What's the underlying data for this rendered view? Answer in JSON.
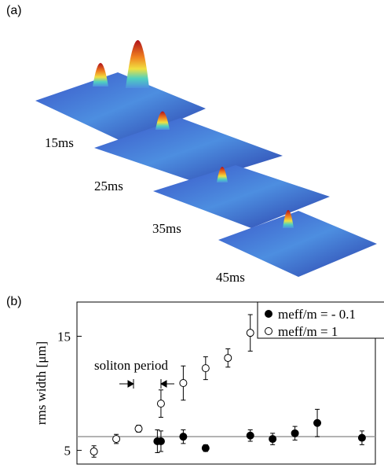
{
  "panel_a": {
    "label": "(a)",
    "times": [
      "15ms",
      "25ms",
      "35ms",
      "45ms"
    ]
  },
  "chart_data": {
    "type": "scatter",
    "panel_label": "(b)",
    "ylabel": "rms width [μm]",
    "annotation": "soliton period",
    "xlim": [
      0.6,
      34
    ],
    "ylim": [
      3.8,
      18
    ],
    "yticks": [
      5,
      15
    ],
    "hline": 6.2,
    "hline_color": "#999999",
    "series": [
      {
        "name": "meff/m = - 0.1",
        "marker": "filled",
        "color": "#000000",
        "x": [
          9.6,
          10,
          12.5,
          15,
          20,
          22.5,
          25,
          27.5,
          32.5
        ],
        "values": [
          5.8,
          5.8,
          6.2,
          5.2,
          6.3,
          6.0,
          6.5,
          7.4,
          6.1
        ],
        "errors": [
          1.0,
          0.9,
          0.6,
          0.3,
          0.5,
          0.5,
          0.6,
          1.2,
          0.6
        ]
      },
      {
        "name": "meff/m = 1",
        "marker": "open",
        "color": "#000000",
        "x": [
          2.5,
          5,
          7.5,
          10,
          12.5,
          15,
          17.5,
          20
        ],
        "values": [
          4.9,
          6.0,
          6.9,
          9.1,
          10.9,
          12.2,
          13.1,
          15.3
        ],
        "errors": [
          0.5,
          0.4,
          0.3,
          1.2,
          1.5,
          1.0,
          0.8,
          1.6
        ]
      }
    ]
  }
}
